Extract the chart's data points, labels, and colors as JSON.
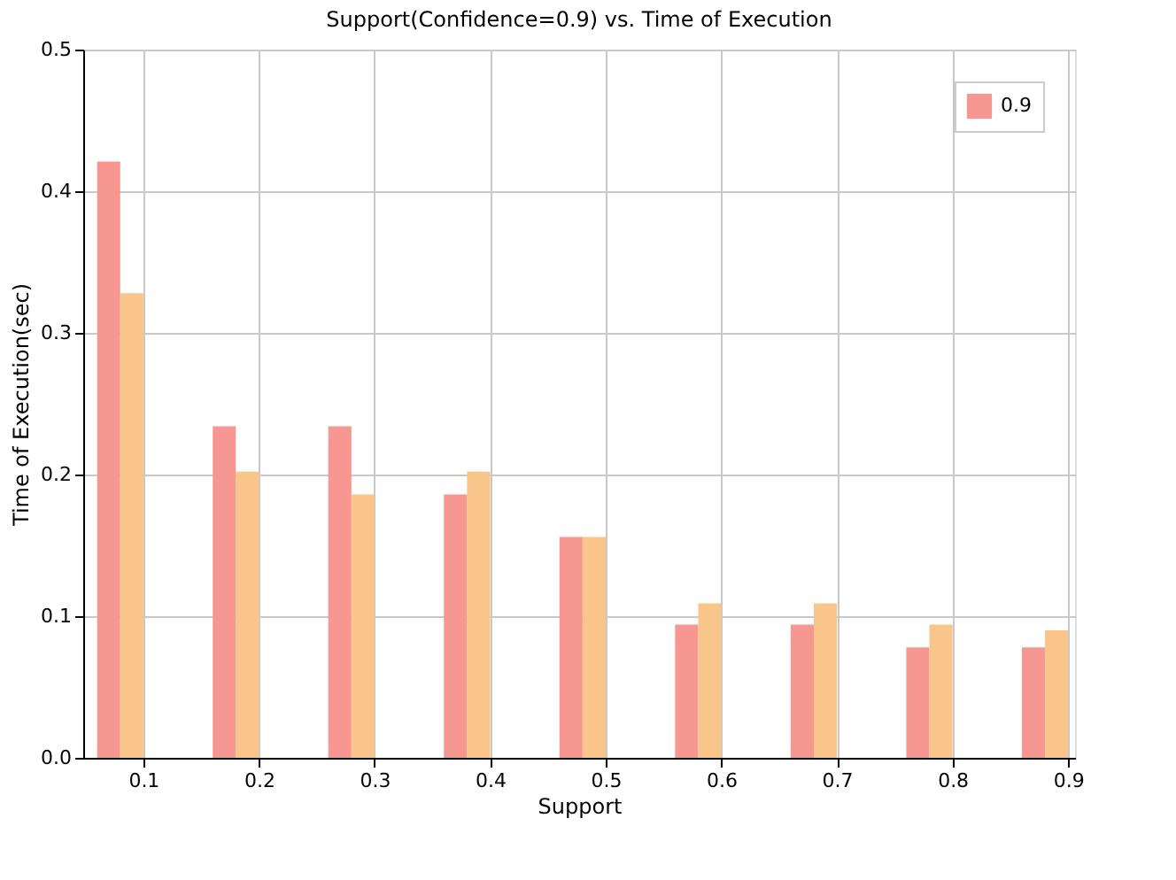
{
  "chart_data": {
    "type": "bar",
    "title": "Support(Confidence=0.9) vs. Time of Execution",
    "xlabel": "Support",
    "ylabel": "Time of Execution(sec)",
    "x": [
      0.1,
      0.2,
      0.3,
      0.4,
      0.5,
      0.6,
      0.7,
      0.8,
      0.9
    ],
    "series": [
      {
        "name": "0.9",
        "color": "#f69891",
        "values": [
          0.421,
          0.234,
          0.234,
          0.186,
          0.156,
          0.094,
          0.094,
          0.078,
          0.078
        ]
      },
      {
        "color": "#f9c58b",
        "values": [
          0.328,
          0.202,
          0.186,
          0.202,
          0.156,
          0.109,
          0.109,
          0.094,
          0.09
        ]
      }
    ],
    "xlim": [
      0.048,
      0.906
    ],
    "xticks": [
      0.1,
      0.2,
      0.3,
      0.4,
      0.5,
      0.6,
      0.7,
      0.8,
      0.9
    ],
    "ylim": [
      0,
      0.5
    ],
    "yticks": [
      {
        "value": 0,
        "label": "0.0"
      },
      0.1,
      0.2,
      0.3,
      0.4,
      0.5
    ],
    "grid": true,
    "legend": "top right"
  }
}
